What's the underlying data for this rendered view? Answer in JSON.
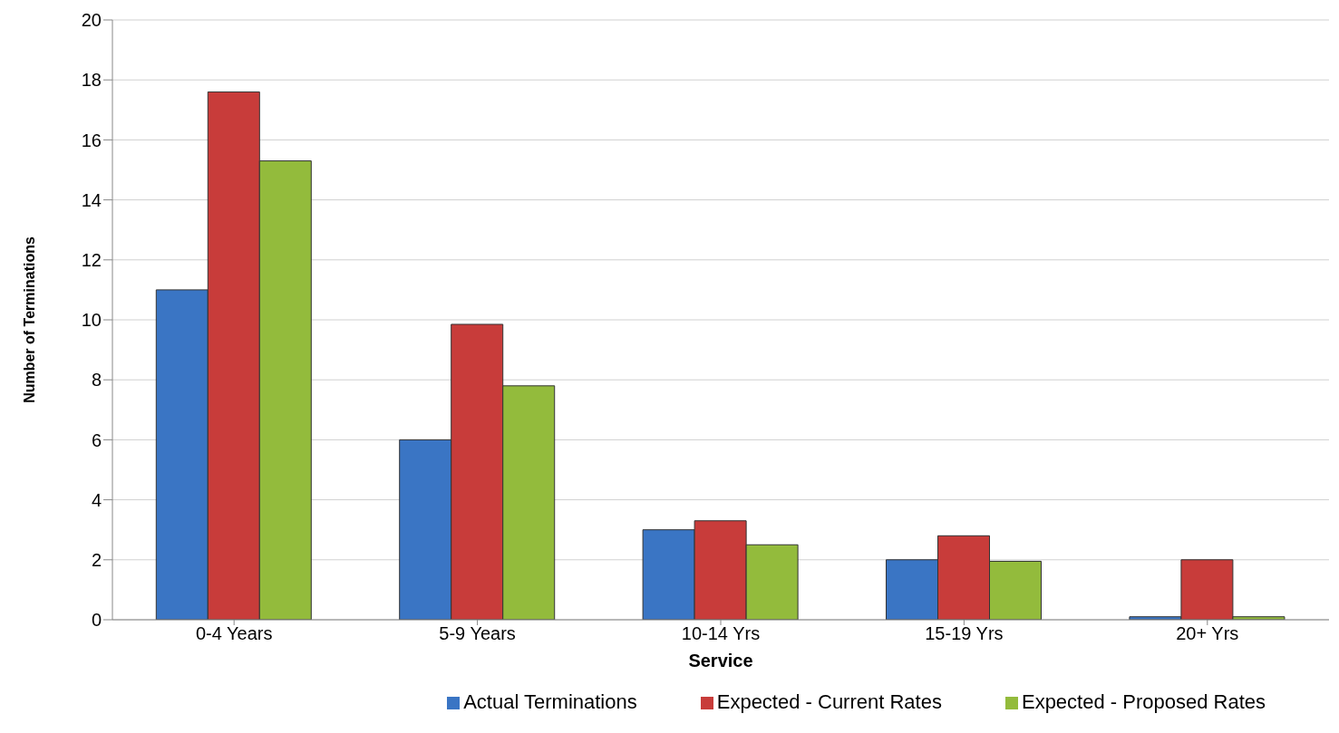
{
  "chart_data": {
    "type": "bar",
    "xlabel": "Service",
    "ylabel": "Number of Terminations",
    "categories": [
      "0-4 Years",
      "5-9 Years",
      "10-14 Yrs",
      "15-19 Yrs",
      "20+ Yrs"
    ],
    "series": [
      {
        "name": "Actual Terminations",
        "color": "#3a75c4",
        "values": [
          11,
          6,
          3,
          2,
          0.1
        ]
      },
      {
        "name": "Expected - Current Rates",
        "color": "#c83c3a",
        "values": [
          17.6,
          9.85,
          3.3,
          2.8,
          2
        ]
      },
      {
        "name": "Expected - Proposed Rates",
        "color": "#93bb3c",
        "values": [
          15.3,
          7.8,
          2.5,
          1.95,
          0.1
        ]
      }
    ],
    "ylim": [
      0,
      20
    ],
    "yticks": [
      0,
      2,
      4,
      6,
      8,
      10,
      12,
      14,
      16,
      18,
      20
    ],
    "grid": "y",
    "legend": "bottom"
  }
}
